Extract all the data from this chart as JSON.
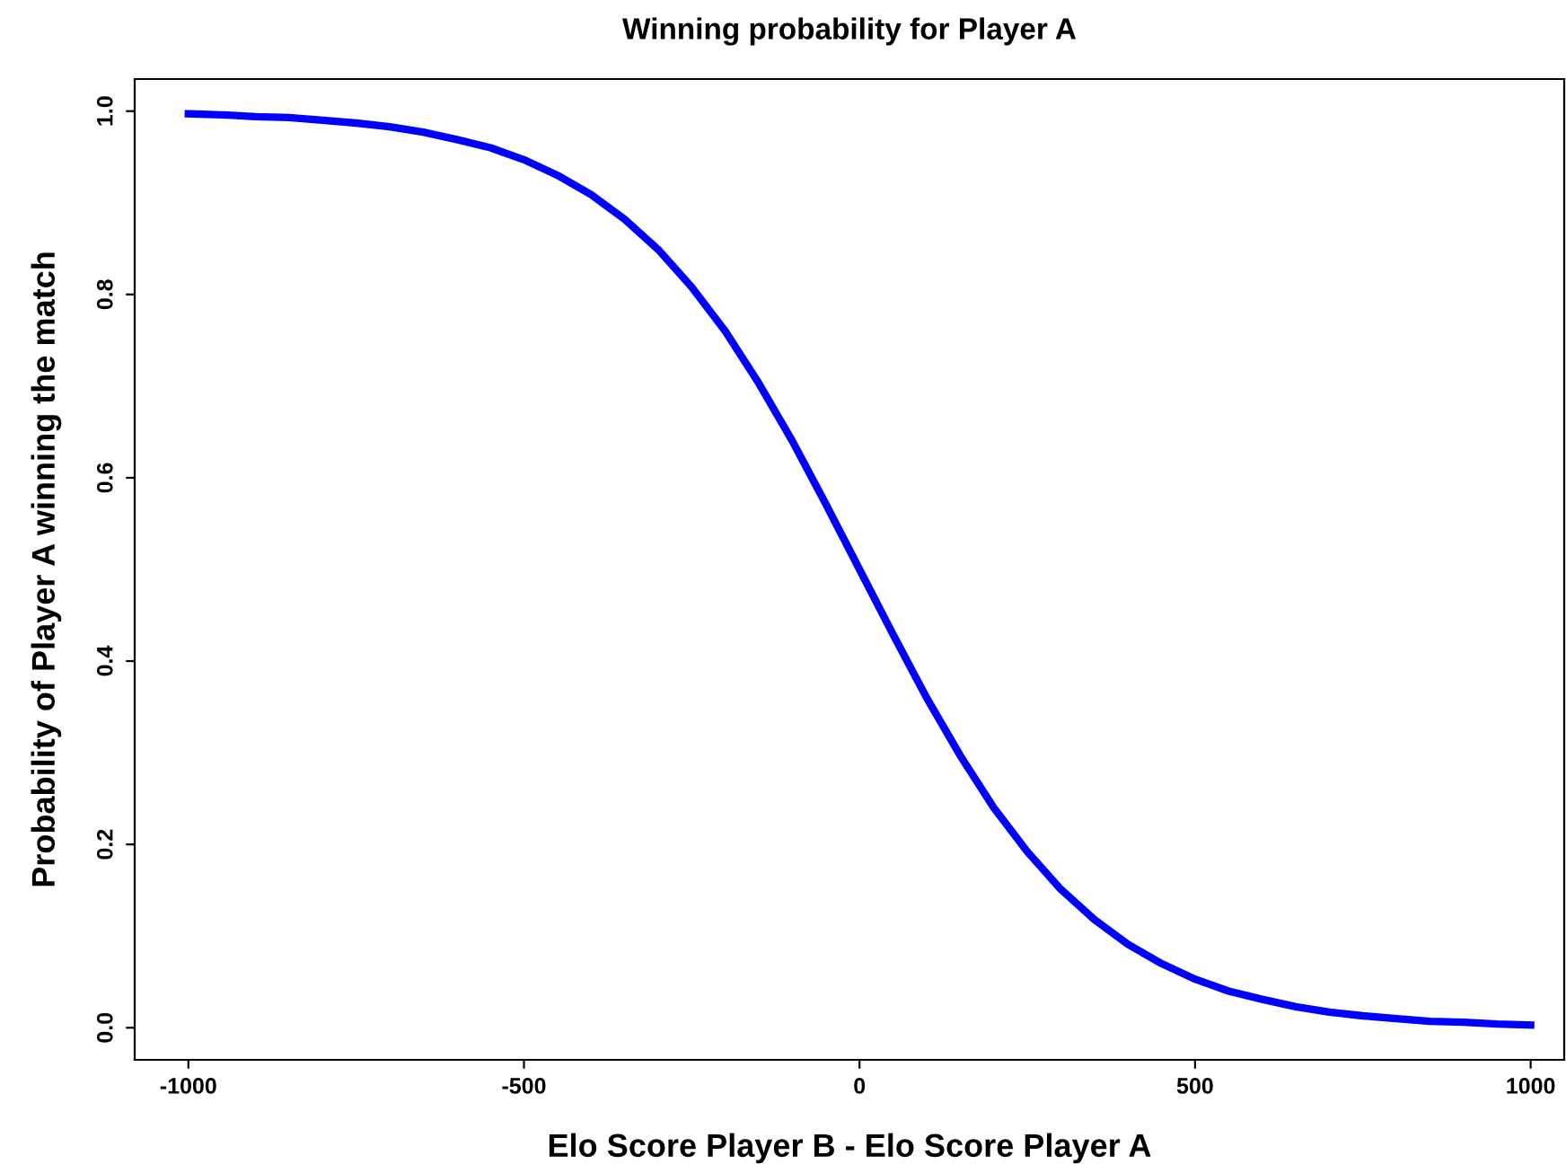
{
  "chart_data": {
    "type": "line",
    "title": "Winning probability for Player A",
    "xlabel": "Elo Score Player B - Elo Score Player A",
    "ylabel": "Probability of Player A winning the match",
    "x": [
      -1000,
      -950,
      -900,
      -850,
      -800,
      -750,
      -700,
      -650,
      -600,
      -550,
      -500,
      -450,
      -400,
      -350,
      -300,
      -250,
      -200,
      -150,
      -100,
      -50,
      0,
      50,
      100,
      150,
      200,
      250,
      300,
      350,
      400,
      450,
      500,
      550,
      600,
      650,
      700,
      750,
      800,
      850,
      900,
      950,
      1000
    ],
    "series": [
      {
        "color": "#0000ff",
        "values": [
          0.997,
          0.996,
          0.994,
          0.993,
          0.99,
          0.987,
          0.983,
          0.977,
          0.969,
          0.96,
          0.947,
          0.93,
          0.909,
          0.882,
          0.849,
          0.808,
          0.76,
          0.703,
          0.64,
          0.571,
          0.5,
          0.429,
          0.36,
          0.297,
          0.24,
          0.192,
          0.151,
          0.118,
          0.091,
          0.07,
          0.053,
          0.04,
          0.031,
          0.023,
          0.017,
          0.013,
          0.01,
          0.007,
          0.006,
          0.004,
          0.003
        ]
      }
    ],
    "xlim": [
      -1080,
      1050
    ],
    "ylim": [
      -0.035,
      1.035
    ],
    "xticks": [
      -1000,
      -500,
      0,
      500,
      1000
    ],
    "yticks": [
      {
        "value": 0,
        "label": "0.0"
      },
      {
        "value": 0.2,
        "label": "0.2"
      },
      {
        "value": 0.4,
        "label": "0.4"
      },
      {
        "value": 0.6,
        "label": "0.6"
      },
      {
        "value": 0.8,
        "label": "0.8"
      },
      {
        "value": 1,
        "label": "1.0"
      }
    ],
    "grid": false,
    "marker": "none",
    "line_style": "solid"
  }
}
